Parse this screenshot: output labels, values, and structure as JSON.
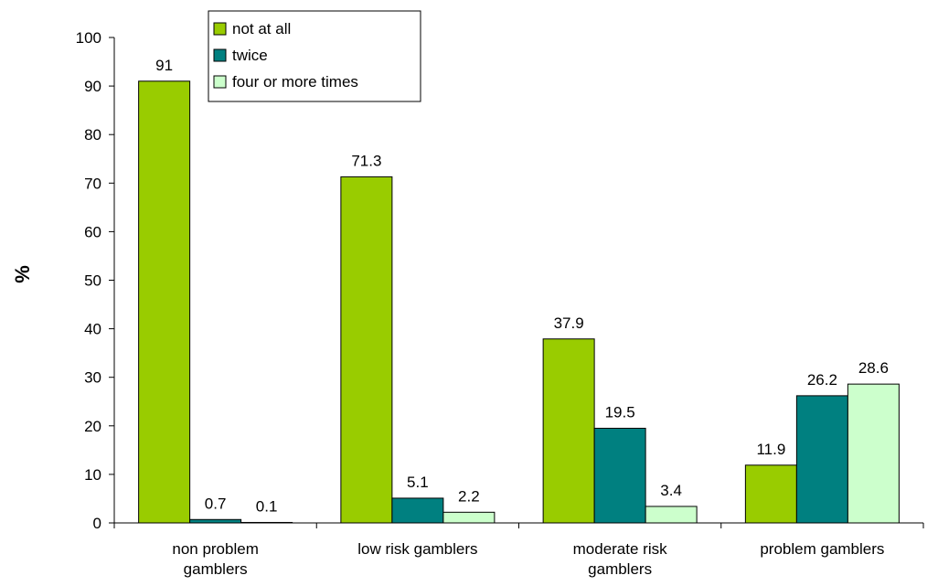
{
  "chart_data": {
    "type": "bar",
    "ylabel": "%",
    "xlabel": "",
    "ylim": [
      0,
      100
    ],
    "yticks": [
      0,
      10,
      20,
      30,
      40,
      50,
      60,
      70,
      80,
      90,
      100
    ],
    "grid": false,
    "legend_position": "top-left",
    "categories": [
      [
        "non problem",
        "gamblers"
      ],
      [
        "low risk gamblers"
      ],
      [
        "moderate risk",
        "gamblers"
      ],
      [
        "problem gamblers"
      ]
    ],
    "series": [
      {
        "name": "not at all",
        "color": "#99cc00",
        "values": [
          91,
          71.3,
          37.9,
          11.9
        ],
        "labels": [
          "91",
          "71.3",
          "37.9",
          "11.9"
        ]
      },
      {
        "name": "twice",
        "color": "#008080",
        "values": [
          0.7,
          5.1,
          19.5,
          26.2
        ],
        "labels": [
          "0.7",
          "5.1",
          "19.5",
          "26.2"
        ]
      },
      {
        "name": "four or more times",
        "color": "#ccffcc",
        "values": [
          0.1,
          2.2,
          3.4,
          28.6
        ],
        "labels": [
          "0.1",
          "2.2",
          "3.4",
          "28.6"
        ]
      }
    ]
  }
}
